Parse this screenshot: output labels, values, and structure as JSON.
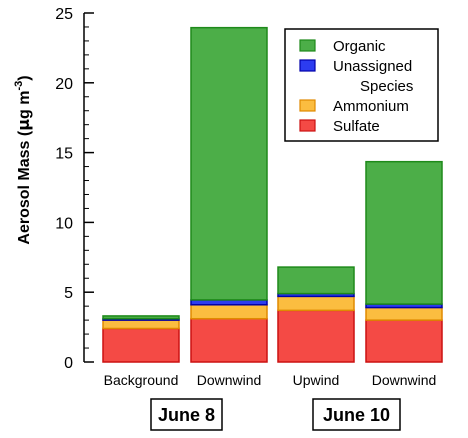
{
  "chart_data": {
    "type": "bar",
    "stacked": true,
    "ylabel_parts": [
      "Aerosol Mass (",
      "μ",
      "g m",
      "-3",
      ")"
    ],
    "ylim": [
      0,
      25
    ],
    "yticks": [
      0,
      5,
      10,
      15,
      20,
      25
    ],
    "categories": [
      "Background",
      "Downwind",
      "Upwind",
      "Downwind"
    ],
    "groups": [
      {
        "label": "June 8",
        "categories": [
          0,
          1
        ]
      },
      {
        "label": "June 10",
        "categories": [
          2,
          3
        ]
      }
    ],
    "series": [
      {
        "name": "Sulfate",
        "color": "#f44a45",
        "edge": "#cc1111",
        "values": [
          2.4,
          3.1,
          3.7,
          3.0
        ]
      },
      {
        "name": "Ammonium",
        "color": "#fbbd40",
        "edge": "#e08a00",
        "values": [
          0.6,
          1.0,
          1.0,
          0.9
        ]
      },
      {
        "name": "Unassigned Species",
        "color": "#2c3cf0",
        "edge": "#0000aa",
        "values": [
          0.1,
          0.35,
          0.2,
          0.25
        ]
      },
      {
        "name": "Organic",
        "color": "#4cae48",
        "edge": "#1e8a1a",
        "values": [
          0.2,
          19.5,
          1.9,
          10.2
        ]
      }
    ],
    "legend": {
      "position": "top-right",
      "entries": [
        {
          "lines": [
            "Organic"
          ],
          "series": 3
        },
        {
          "lines": [
            "Unassigned",
            "Species"
          ],
          "series": 2
        },
        {
          "lines": [
            "Ammonium"
          ],
          "series": 1
        },
        {
          "lines": [
            "Sulfate"
          ],
          "series": 0
        }
      ]
    },
    "grid": false
  }
}
